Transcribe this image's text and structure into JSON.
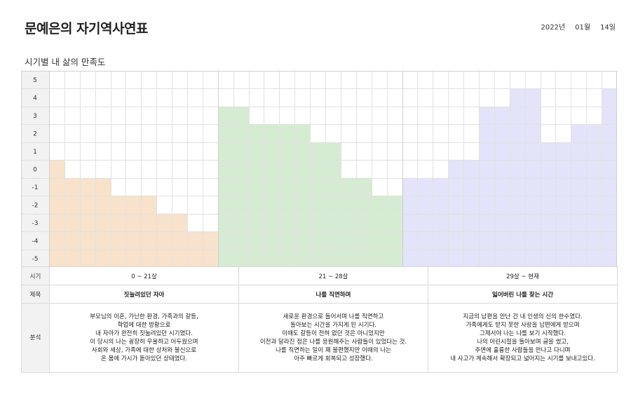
{
  "title": "문예은의 자기역사연표",
  "date": {
    "year": "2022년",
    "month": "01월",
    "day": "14일"
  },
  "subtitle": "시기별 내 삶의 만족도",
  "colors": {
    "period1": "#f8e2cb",
    "period2": "#d6ecd2",
    "period3": "#e3e3f9",
    "grid": "#e2e2e2",
    "border": "#d0d0d0"
  },
  "chart_data": {
    "type": "bar",
    "ylim": [
      -5,
      5
    ],
    "yticks": [
      "5",
      "4",
      "3",
      "2",
      "1",
      "0",
      "-1",
      "-2",
      "-3",
      "-4",
      "-5"
    ],
    "values": [
      0,
      -1,
      -1,
      -1,
      -2,
      -2,
      -2,
      -3,
      -3,
      -4,
      -4,
      3,
      3,
      2,
      2,
      2,
      2,
      1,
      1,
      -1,
      -1,
      -2,
      -2,
      -1,
      -1,
      -1,
      0,
      0,
      3,
      3,
      4,
      4,
      1,
      1,
      2,
      2,
      4
    ],
    "segments": [
      {
        "start": 0,
        "end": 11,
        "color": "#f8e2cb"
      },
      {
        "start": 11,
        "end": 23,
        "color": "#d6ecd2"
      },
      {
        "start": 23,
        "end": 37,
        "color": "#e3e3f9"
      }
    ]
  },
  "table": {
    "labels": {
      "period": "시기",
      "title": "제목",
      "analysis": "분석"
    },
    "periods": [
      "0 ~ 21살",
      "21 ~ 28살",
      "29살 ~ 현재"
    ],
    "titles": [
      "짓눌려있던 자아",
      "나를 직면하며",
      "잃어버린 나를 찾는 시간"
    ],
    "analysis": [
      [
        "부모님의 이혼, 가난한 환경, 가족과의 갈등,",
        "학업에 대한 방황으로",
        "내 자아가 완전히 짓눌려있던 시기였다.",
        "이 당시의 나는 굉장히 우울하고 어두웠으며",
        "사회와 세상, 가족에 대한 상처와 불신으로",
        "온 몸에 가시가 돋아있던 상태였다."
      ],
      [
        "새로운 환경으로 들어서며 나를 직면하고",
        "돌아보는 시간을 가지게 된 시기다.",
        "이때도 갈등이 전혀 없던 것은 아니었지만",
        "이전과 달라진 점은 나를 응원해주는 사람들이 있었다는 것.",
        "나를 직면하는 일이 꽤 불편했지만 이때의 나는",
        "아주 빠르게 회복되고 성장했다."
      ],
      [
        "지금의 남편을 만난 건 내 인생의 신의 한수였다.",
        "가족에게도 받지 못한 사랑을 남편에게 받으며",
        "그제서야 나는 나를 보기 시작했다.",
        "나의 어린시절을 돌아보며 글을 썼고,",
        "주변에 훌륭한 사람들을 만나고 다니며",
        "내 사고가 계속해서 확장되고 넓어지는 시기를 보내고있다."
      ]
    ]
  }
}
